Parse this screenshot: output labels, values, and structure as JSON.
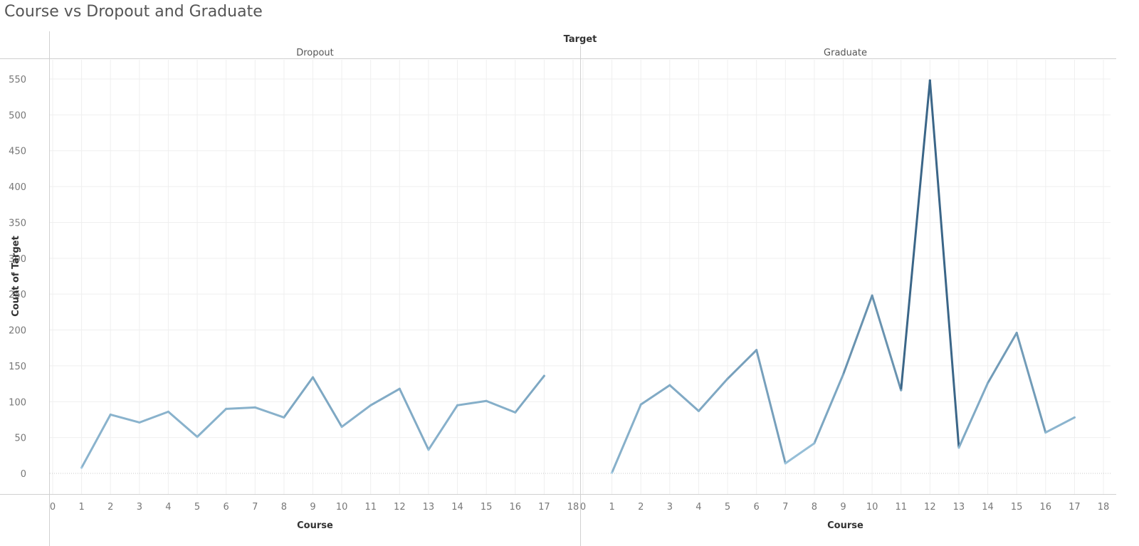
{
  "chart_data": {
    "type": "line",
    "title": "Course vs Dropout and Graduate",
    "header_label": "Target",
    "xlabel": "Course",
    "ylabel": "Count of Target",
    "ylim": [
      0,
      550
    ],
    "y_ticks": [
      0,
      50,
      100,
      150,
      200,
      250,
      300,
      350,
      400,
      450,
      500,
      550
    ],
    "xlim": [
      0,
      18
    ],
    "x_ticks": [
      0,
      1,
      2,
      3,
      4,
      5,
      6,
      7,
      8,
      9,
      10,
      11,
      12,
      13,
      14,
      15,
      16,
      17,
      18
    ],
    "grid": true,
    "colors": {
      "light": "#a6cfe6",
      "dark": "#3b6688"
    },
    "panels": [
      {
        "name": "Dropout",
        "x": [
          1,
          2,
          3,
          4,
          5,
          6,
          7,
          8,
          9,
          10,
          11,
          12,
          13,
          14,
          15,
          16,
          17
        ],
        "values": [
          8,
          82,
          71,
          86,
          51,
          90,
          92,
          78,
          134,
          65,
          95,
          118,
          33,
          95,
          101,
          85,
          136
        ]
      },
      {
        "name": "Graduate",
        "x": [
          1,
          2,
          3,
          4,
          5,
          6,
          7,
          8,
          9,
          10,
          11,
          12,
          13,
          14,
          15,
          16,
          17
        ],
        "values": [
          1,
          96,
          123,
          87,
          132,
          172,
          14,
          42,
          138,
          248,
          116,
          548,
          36,
          126,
          196,
          57,
          78
        ]
      }
    ]
  }
}
